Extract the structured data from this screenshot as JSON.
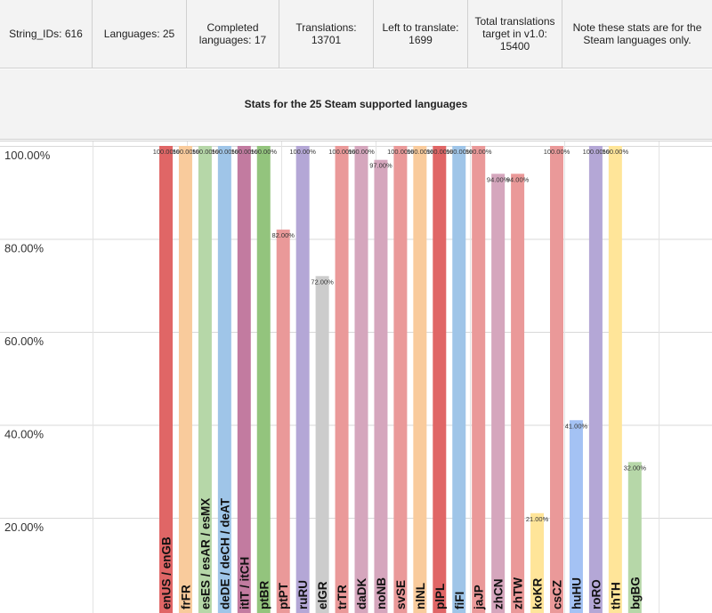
{
  "stats": [
    {
      "key": "string_ids",
      "text": "String_IDs: 616"
    },
    {
      "key": "languages",
      "text": "Languages: 25"
    },
    {
      "key": "completed",
      "text": "Completed languages: 17"
    },
    {
      "key": "translations",
      "text": "Translations: 13701"
    },
    {
      "key": "left",
      "text": "Left to translate: 1699"
    },
    {
      "key": "target",
      "text": "Total translations target in v1.0: 15400"
    },
    {
      "key": "note",
      "text": "Note these stats are for the Steam languages only."
    }
  ],
  "chart_title": "Stats for the 25 Steam supported languages",
  "chart_data": {
    "type": "bar",
    "title": "Stats for the 25 Steam supported languages",
    "xlabel": "",
    "ylabel": "",
    "ylim": [
      0,
      100
    ],
    "y_tick_labels": [
      "100.00%",
      "80.00%",
      "60.00%",
      "40.00%",
      "20.00%"
    ],
    "y_tick_values": [
      100,
      80,
      60,
      40,
      20
    ],
    "grid": true,
    "categories": [
      "enUS / enGB",
      "frFR",
      "esES / esAR / esMX",
      "deDE / deCH / deAT",
      "itIT / itCH",
      "ptBR",
      "ptPT",
      "ruRU",
      "elGR",
      "trTR",
      "daDK",
      "noNB",
      "svSE",
      "nlNL",
      "plPL",
      "fiFI",
      "jaJP",
      "zhCN",
      "zhTW",
      "koKR",
      "csCZ",
      "huHU",
      "roRO",
      "thTH",
      "bgBG"
    ],
    "values": [
      100,
      100,
      100,
      100,
      100,
      100,
      82,
      100,
      72,
      100,
      100,
      97,
      100,
      100,
      100,
      100,
      100,
      94,
      94,
      21,
      100,
      41,
      100,
      100,
      32
    ],
    "data_labels": [
      "100.00%",
      "100.00%",
      "100.00%",
      "100.00%",
      "100.00%",
      "100.00%",
      "82.00%",
      "100.00%",
      "72.00%",
      "100.00%",
      "100.00%",
      "97.00%",
      "100.00%",
      "100.00%",
      "100.00%",
      "100.00%",
      "100.00%",
      "94.00%",
      "94.00%",
      "21.00%",
      "100.00%",
      "41.00%",
      "100.00%",
      "100.00%",
      "32.00%"
    ],
    "colors": [
      "#e06666",
      "#f9cb9c",
      "#b6d7a8",
      "#9fc5e8",
      "#c27ba0",
      "#93c47d",
      "#ea9999",
      "#b4a7d6",
      "#cccccc",
      "#ea9999",
      "#d5a6bd",
      "#d5a6bd",
      "#ea9999",
      "#f9cb9c",
      "#e06666",
      "#9fc5e8",
      "#ea9999",
      "#d5a6bd",
      "#ea9999",
      "#ffe599",
      "#ea9999",
      "#a4c2f4",
      "#b4a7d6",
      "#ffe599",
      "#b6d7a8"
    ]
  }
}
